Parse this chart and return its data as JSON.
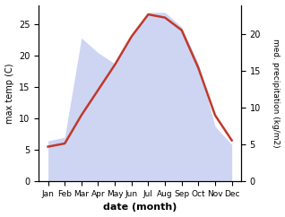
{
  "months": [
    "Jan",
    "Feb",
    "Mar",
    "Apr",
    "May",
    "Jun",
    "Jul",
    "Aug",
    "Sep",
    "Oct",
    "Nov",
    "Dec"
  ],
  "max_temp": [
    5.5,
    6.0,
    10.5,
    14.5,
    18.5,
    23.0,
    26.5,
    26.0,
    24.0,
    18.0,
    10.5,
    6.5
  ],
  "precipitation": [
    5.5,
    6.0,
    19.5,
    17.5,
    16.0,
    20.0,
    23.0,
    23.0,
    21.0,
    16.0,
    7.5,
    5.0
  ],
  "temp_color": "#c0392b",
  "precip_color": "#b8c4ee",
  "ylabel_left": "max temp (C)",
  "ylabel_right": "med. precipitation (kg/m2)",
  "xlabel": "date (month)",
  "ylim_left": [
    0,
    28
  ],
  "ylim_right": [
    0,
    24
  ],
  "yticks_left": [
    0,
    5,
    10,
    15,
    20,
    25
  ],
  "yticks_right": [
    0,
    5,
    10,
    15,
    20
  ],
  "background_color": "#ffffff"
}
